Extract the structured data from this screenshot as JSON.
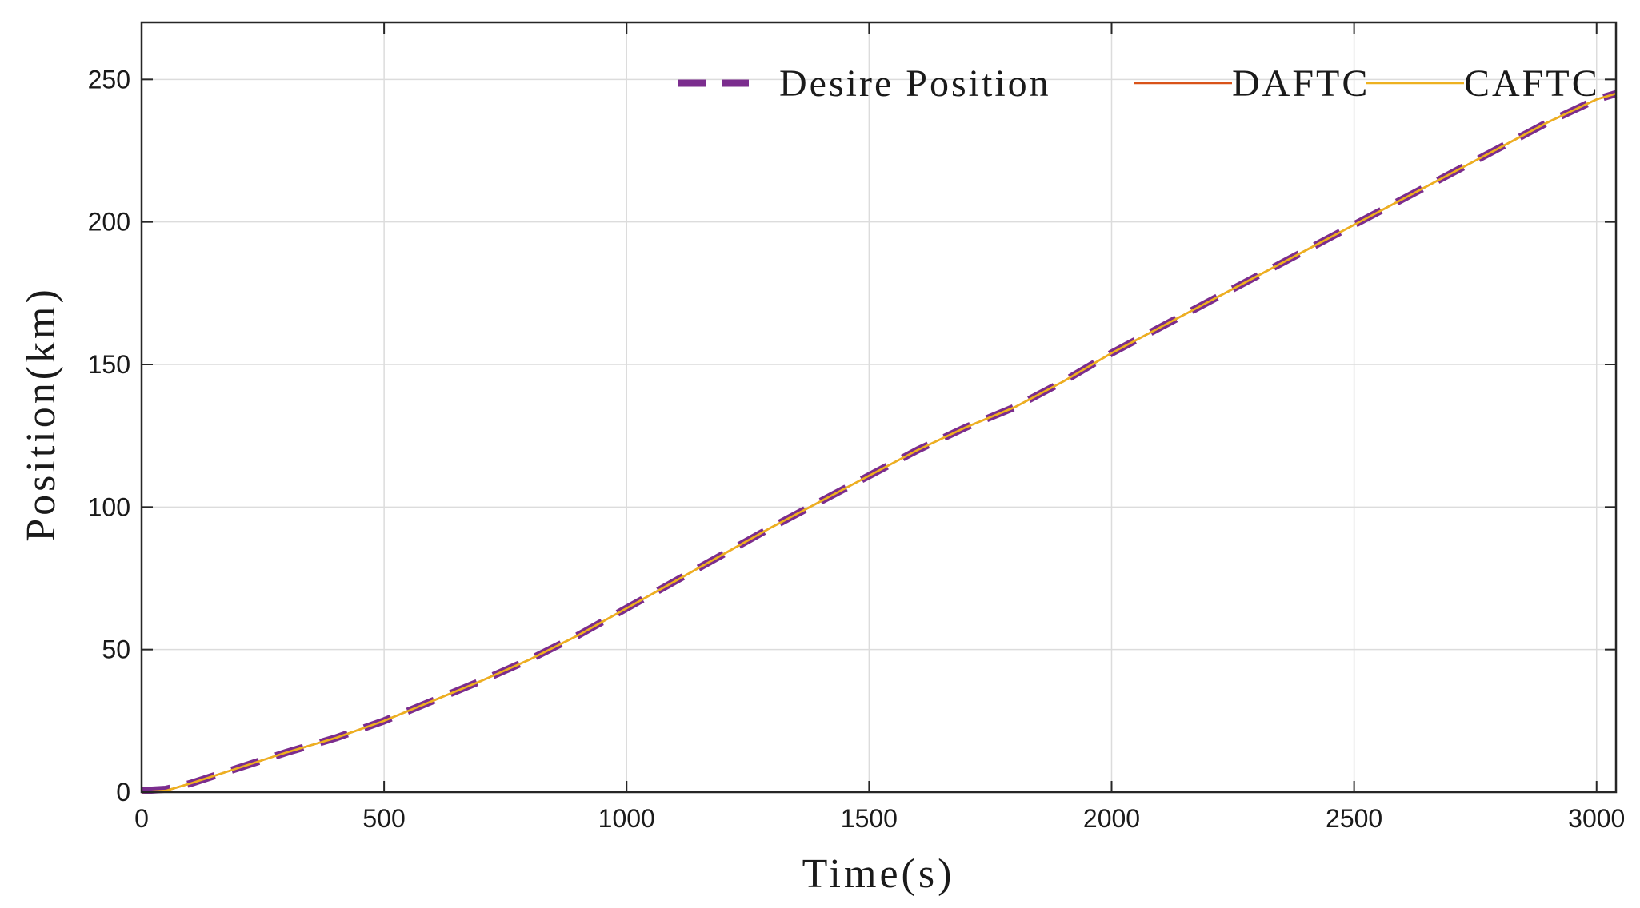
{
  "chart_data": {
    "type": "line",
    "xlabel": "Time(s)",
    "ylabel": "Position(km)",
    "xlim": [
      0,
      3040
    ],
    "ylim": [
      0,
      270
    ],
    "xticks": [
      0,
      500,
      1000,
      1500,
      2000,
      2500,
      3000
    ],
    "yticks": [
      0,
      50,
      100,
      150,
      200,
      250
    ],
    "grid": true,
    "legend_position": "top-right",
    "series": [
      {
        "name": "Desire Position",
        "color": "#7b2d8e",
        "style": "dashed",
        "x": [
          0,
          50,
          100,
          200,
          300,
          400,
          500,
          600,
          700,
          800,
          900,
          1000,
          1100,
          1200,
          1300,
          1400,
          1500,
          1600,
          1700,
          1800,
          1900,
          2000,
          2100,
          2200,
          2300,
          2400,
          2500,
          2600,
          2700,
          2800,
          2900,
          3000,
          3040
        ],
        "y": [
          0.5,
          1,
          3,
          8.5,
          14,
          19,
          25,
          32,
          39,
          46.5,
          55,
          64.5,
          74,
          83.5,
          93,
          102,
          111,
          120,
          128,
          135,
          144,
          154,
          163,
          172,
          181,
          190,
          199,
          208,
          217,
          226,
          235,
          243,
          245
        ]
      },
      {
        "name": "DAFTC",
        "color": "#d95319",
        "style": "solid",
        "x": [
          0,
          50,
          100,
          200,
          300,
          400,
          500,
          600,
          700,
          800,
          900,
          1000,
          1100,
          1200,
          1300,
          1400,
          1500,
          1600,
          1700,
          1800,
          1900,
          2000,
          2100,
          2200,
          2300,
          2400,
          2500,
          2600,
          2700,
          2800,
          2900,
          3000,
          3040
        ],
        "y": [
          0,
          0.5,
          3,
          8.5,
          14,
          19,
          25,
          32,
          39,
          46.5,
          55,
          64.5,
          74,
          83.5,
          93,
          102,
          111,
          120,
          128,
          135,
          144,
          154,
          163,
          172,
          181,
          190,
          199,
          208,
          217,
          226,
          235,
          243,
          245
        ]
      },
      {
        "name": "CAFTC",
        "color": "#edb120",
        "style": "solid",
        "x": [
          0,
          50,
          100,
          200,
          300,
          400,
          500,
          600,
          700,
          800,
          900,
          1000,
          1100,
          1200,
          1300,
          1400,
          1500,
          1600,
          1700,
          1800,
          1900,
          2000,
          2100,
          2200,
          2300,
          2400,
          2500,
          2600,
          2700,
          2800,
          2900,
          3000,
          3040
        ],
        "y": [
          0,
          0.5,
          3,
          8.5,
          14,
          19,
          25,
          32,
          39,
          46.5,
          55,
          64.5,
          74,
          83.5,
          93,
          102,
          111,
          120,
          128,
          135,
          144,
          154,
          163,
          172,
          181,
          190,
          199,
          208,
          217,
          226,
          235,
          243,
          245
        ]
      }
    ]
  }
}
